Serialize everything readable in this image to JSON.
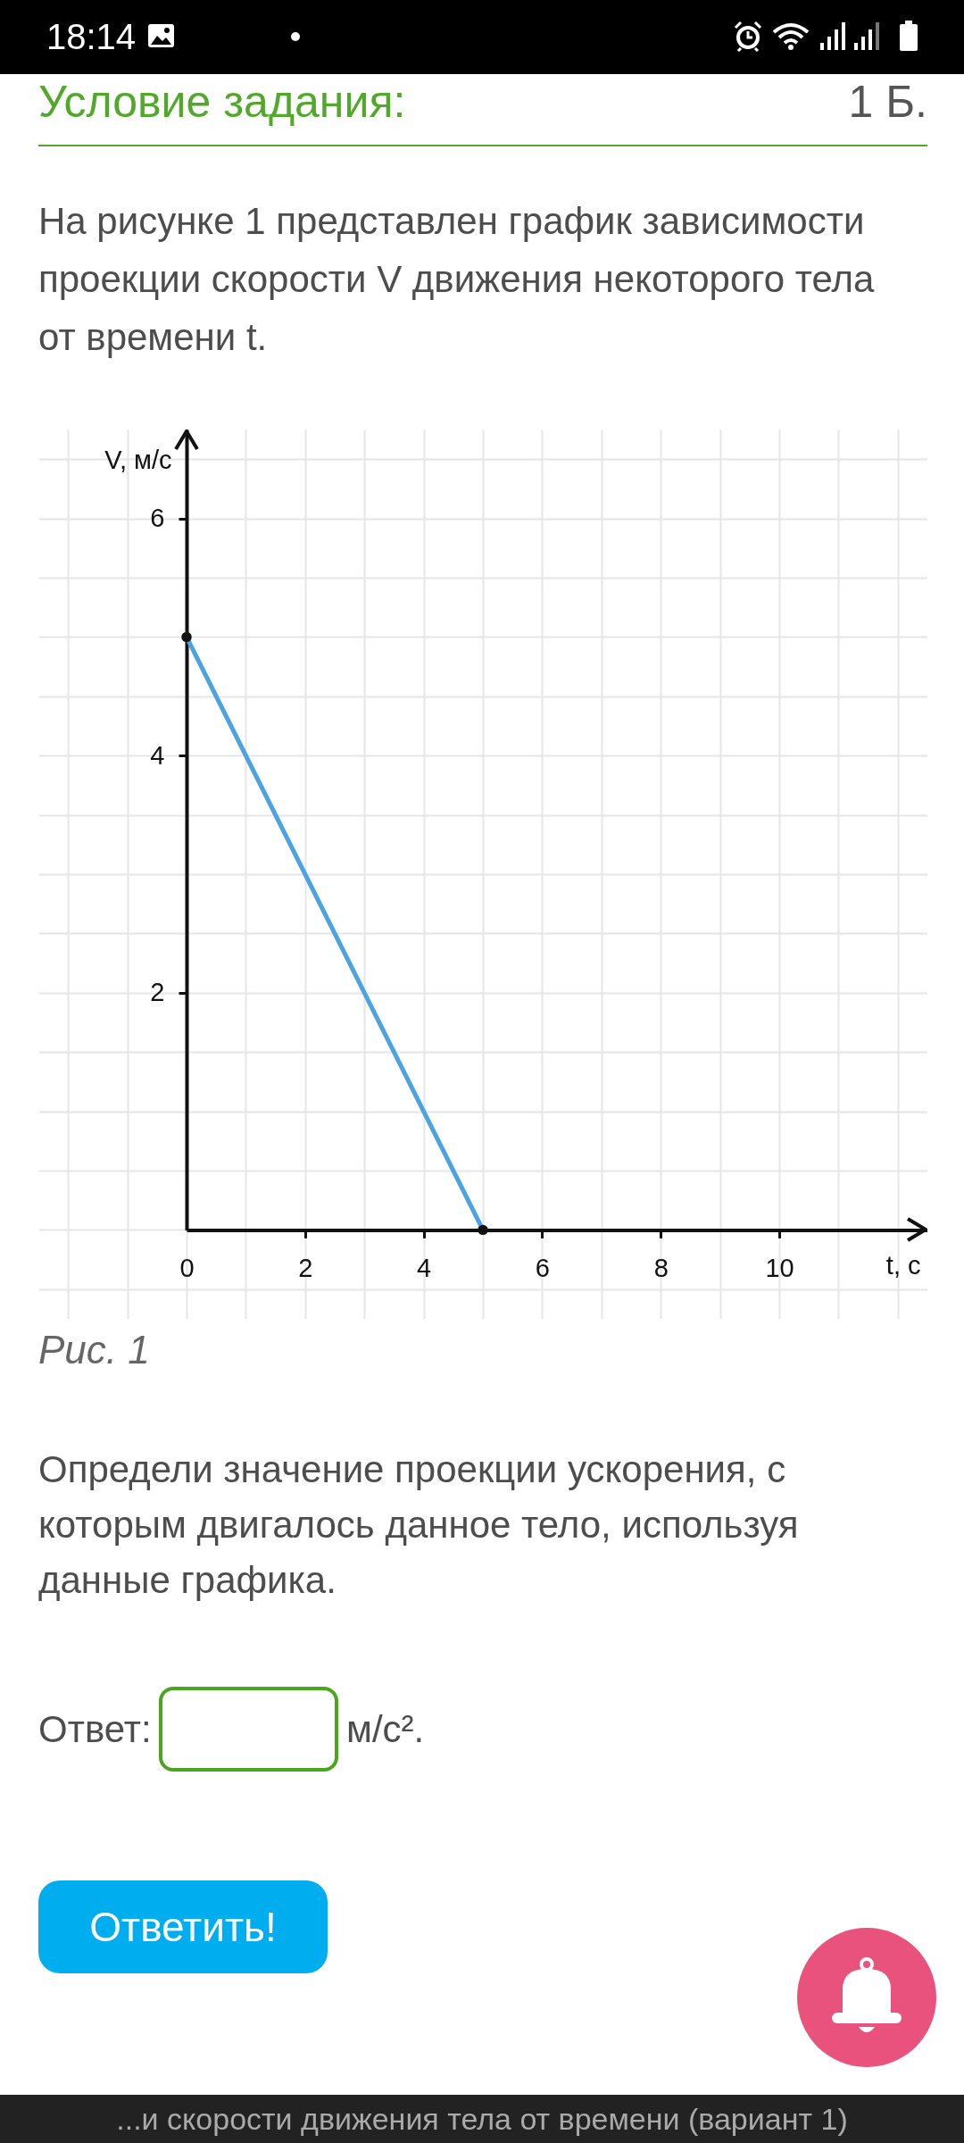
{
  "chart_data": {
    "type": "line",
    "title": "Условие задания:",
    "xlabel": "t, с",
    "ylabel": "V, м/с",
    "x": [
      0,
      5
    ],
    "values": [
      5,
      0
    ],
    "color": "#4ba3e2",
    "marker": "circle",
    "xlim": [
      -2.5,
      12.5
    ],
    "ylim": [
      -0.75,
      6.75
    ],
    "xticks": [
      {
        "value": -2,
        "label": null
      },
      {
        "value": -1,
        "label": null
      },
      0,
      {
        "value": 1,
        "label": null
      },
      2,
      {
        "value": 3,
        "label": null
      },
      4,
      {
        "value": 5,
        "label": null
      },
      6,
      {
        "value": 7,
        "label": null
      },
      8,
      {
        "value": 9,
        "label": null
      },
      10,
      {
        "value": 11,
        "label": null
      },
      {
        "value": 12,
        "label": null
      }
    ],
    "yticks": [
      {
        "value": -0.5,
        "label": null
      },
      {
        "value": 0,
        "label": null
      },
      {
        "value": 0.5,
        "label": null
      },
      {
        "value": 1,
        "label": null
      },
      {
        "value": 1.5,
        "label": null
      },
      2,
      {
        "value": 2.5,
        "label": null
      },
      {
        "value": 3,
        "label": null
      },
      {
        "value": 3.5,
        "label": null
      },
      4,
      {
        "value": 4.5,
        "label": null
      },
      {
        "value": 5,
        "label": null
      },
      {
        "value": 5.5,
        "label": null
      },
      6,
      {
        "value": 6.5,
        "label": null
      }
    ],
    "grid": true,
    "annotations": [
      "18:14",
      "1 Б.",
      "На рисунке 1 представлен график зависимости проекции скорости V движения некоторого тела от времени t.",
      "Рис. 1",
      "Определи значение проекции ускорения, с которым двигалось данное тело, используя данные графика.",
      "Ответ:",
      "м/с².",
      "Ответить!",
      "...и скорости движения тела от времени (вариант 1)"
    ]
  }
}
